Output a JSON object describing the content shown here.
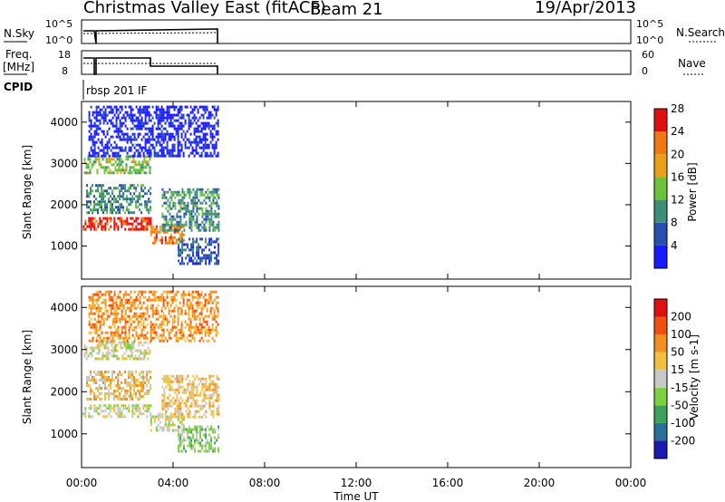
{
  "header": {
    "title": "Christmas Valley East (fitACF)",
    "beam": "Beam 21",
    "date": "19/Apr/2013"
  },
  "nsky_panel": {
    "left_label": "N.Sky",
    "left_ticks": [
      "10^5",
      "10^0"
    ],
    "right_ticks": [
      "10^5",
      "10^0"
    ],
    "right_label": "N.Search"
  },
  "freq_panel": {
    "left_label_1": "Freq.",
    "left_label_2": "[MHz]",
    "left_ticks": [
      "18",
      "8"
    ],
    "right_ticks": [
      "60",
      "0"
    ],
    "right_label": "Nave"
  },
  "cpid": {
    "label": "CPID",
    "value": "rbsp 201 IF"
  },
  "chart_data": [
    {
      "type": "heatmap",
      "name": "power",
      "ylabel": "Slant Range [km]",
      "ylim": [
        200,
        4500
      ],
      "yticks": [
        1000,
        2000,
        3000,
        4000
      ],
      "xlim": [
        0,
        24
      ],
      "colorbar_label": "Power [dB]",
      "colorbar_ticks": [
        "4",
        "8",
        "12",
        "16",
        "20",
        "24",
        "28"
      ],
      "colorbar_colors": [
        "#1a1aff",
        "#2a4fb0",
        "#3d8f7a",
        "#6cc23a",
        "#e8a018",
        "#f07810",
        "#e01010"
      ],
      "regions": [
        {
          "t0": 0.05,
          "t1": 3.0,
          "r0": 1400,
          "r1": 1700,
          "level": 6
        },
        {
          "t0": 0.1,
          "t1": 3.0,
          "r0": 2800,
          "r1": 3200,
          "level": 3
        },
        {
          "t0": 0.2,
          "t1": 3.0,
          "r0": 1800,
          "r1": 2500,
          "level": 2
        },
        {
          "t0": 3.0,
          "t1": 4.5,
          "r0": 1050,
          "r1": 1500,
          "level": 5
        },
        {
          "t0": 3.5,
          "t1": 6.0,
          "r0": 1400,
          "r1": 2400,
          "level": 2
        },
        {
          "t0": 4.2,
          "t1": 6.0,
          "r0": 600,
          "r1": 1200,
          "level": 1
        },
        {
          "t0": 0.3,
          "t1": 6.0,
          "r0": 3200,
          "r1": 4400,
          "level": 0
        }
      ]
    },
    {
      "type": "heatmap",
      "name": "velocity",
      "ylabel": "Slant Range [km]",
      "ylim": [
        200,
        4500
      ],
      "yticks": [
        1000,
        2000,
        3000,
        4000
      ],
      "xlim": [
        0,
        24
      ],
      "colorbar_label": "Velocity [m s-1]",
      "colorbar_ticks": [
        "200",
        "100",
        "50",
        "15",
        "-15",
        "-50",
        "-100",
        "-200"
      ],
      "colorbar_colors": [
        "#1a1ab0",
        "#2a6f9a",
        "#3da35a",
        "#7ed040",
        "#c8c8c8",
        "#f0c040",
        "#f09020",
        "#f05010",
        "#e01010"
      ],
      "regions": [
        {
          "t0": 0.05,
          "t1": 3.0,
          "r0": 1400,
          "r1": 1700,
          "level": 4
        },
        {
          "t0": 0.1,
          "t1": 3.0,
          "r0": 2800,
          "r1": 3200,
          "level": 4
        },
        {
          "t0": 0.2,
          "t1": 3.0,
          "r0": 1800,
          "r1": 2500,
          "level": 5
        },
        {
          "t0": 3.0,
          "t1": 4.5,
          "r0": 1050,
          "r1": 1500,
          "level": 4
        },
        {
          "t0": 3.5,
          "t1": 6.0,
          "r0": 1400,
          "r1": 2400,
          "level": 5
        },
        {
          "t0": 4.2,
          "t1": 6.0,
          "r0": 600,
          "r1": 1200,
          "level": 3
        },
        {
          "t0": 0.3,
          "t1": 6.0,
          "r0": 3200,
          "r1": 4400,
          "level": 6
        }
      ]
    }
  ],
  "xaxis": {
    "ticks": [
      "00:00",
      "04:00",
      "08:00",
      "12:00",
      "16:00",
      "20:00",
      "00:00"
    ],
    "label": "Time UT"
  }
}
